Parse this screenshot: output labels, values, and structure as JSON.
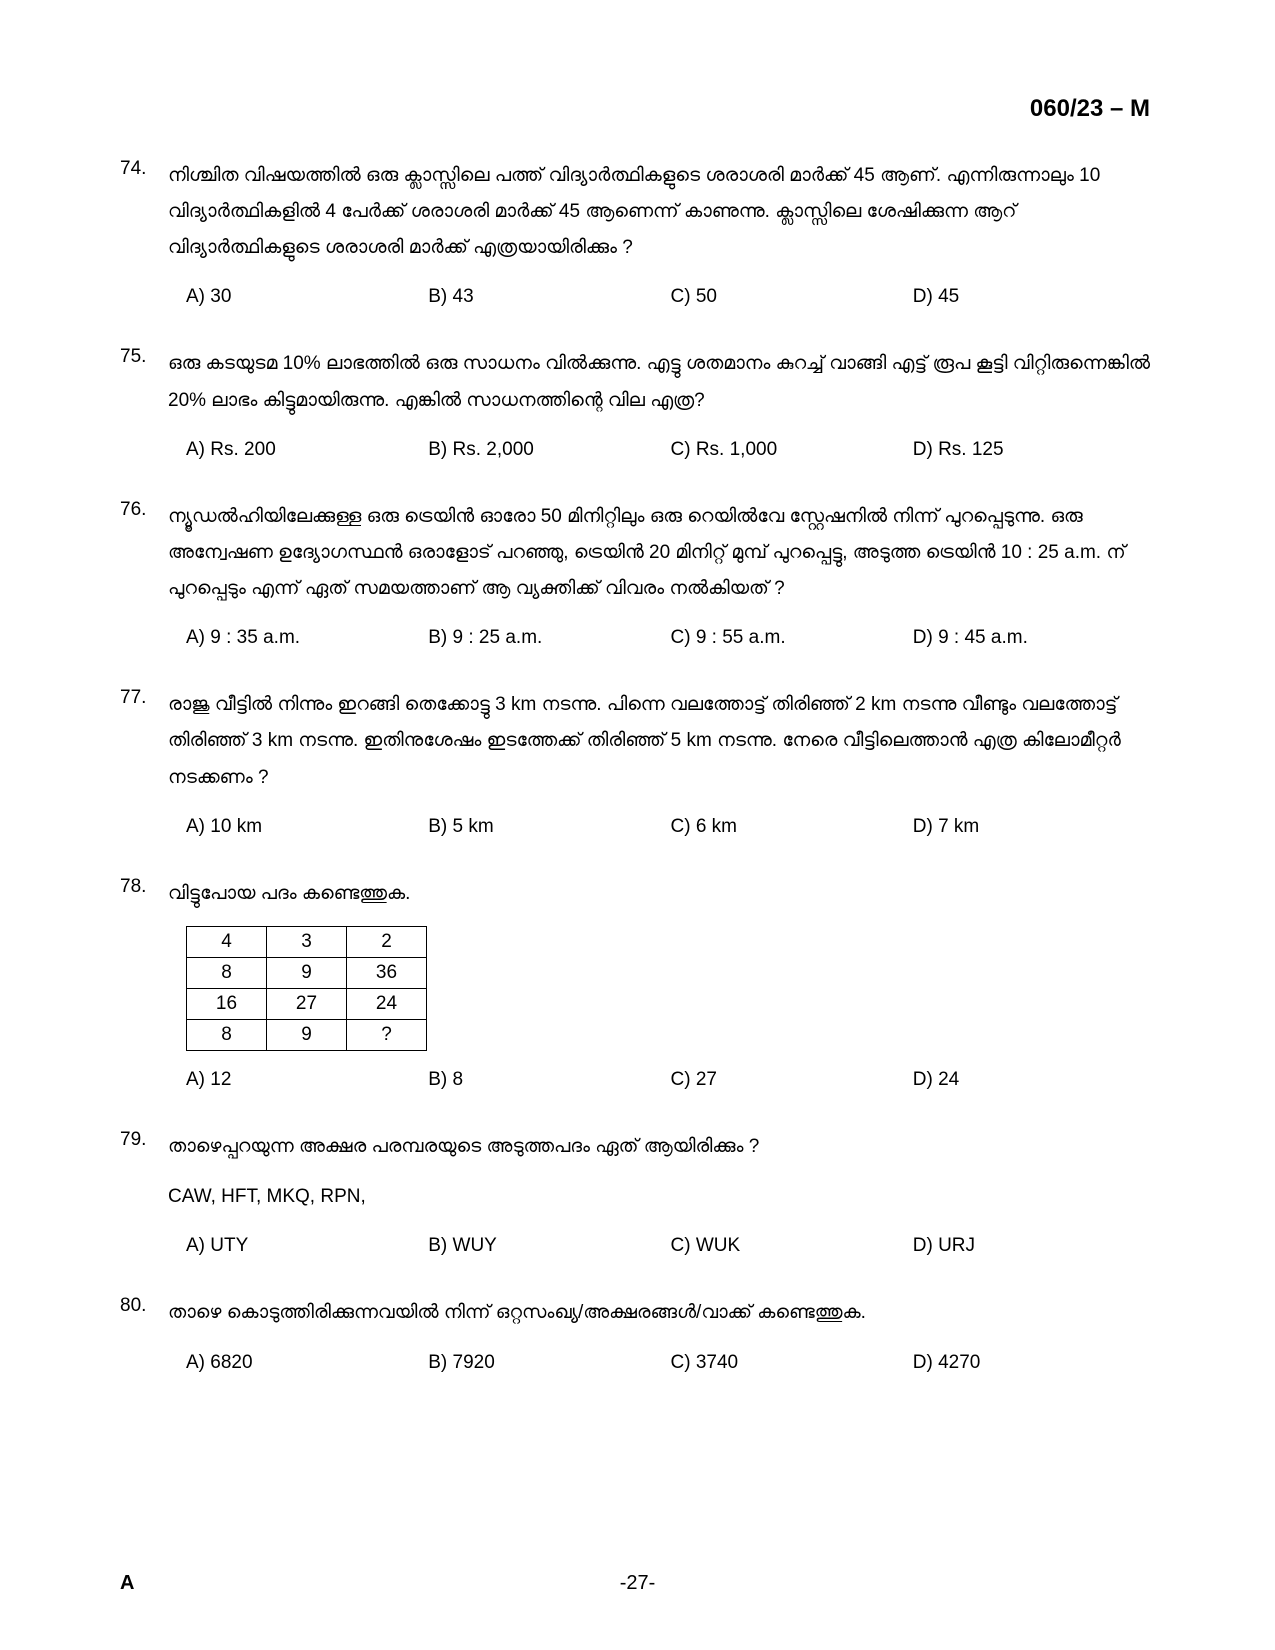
{
  "header": {
    "code": "060/23 – M"
  },
  "questions": [
    {
      "number": "74.",
      "text": "നിശ്ചിത വിഷയത്തിൽ ഒരു ക്ലാസ്സിലെ പത്ത് വിദ്യാർത്ഥികളുടെ ശരാശരി മാർക്ക് 45 ആണ്. എന്നിരുന്നാലും 10 വിദ്യാർത്ഥികളിൽ 4 പേർക്ക് ശരാശരി മാർക്ക് 45 ആണെന്ന് കാണുന്നു. ക്ലാസ്സിലെ ശേഷിക്കുന്ന ആറ് വിദ്യാർത്ഥികളുടെ ശരാശരി മാർക്ക് എത്രയായിരിക്കും ?",
      "options": {
        "a": "A)  30",
        "b": "B)  43",
        "c": "C)  50",
        "d": "D)  45"
      }
    },
    {
      "number": "75.",
      "text": "ഒരു കടയുടമ 10% ലാഭത്തിൽ ഒരു സാധനം വിൽക്കുന്നു. എട്ടു ശതമാനം കുറച്ച് വാങ്ങി എട്ട് രൂപ കൂട്ടി വിറ്റിരുന്നെങ്കിൽ 20% ലാഭം കിട്ടുമായിരുന്നു. എങ്കിൽ സാധനത്തിന്റെ വില എത്ര?",
      "options": {
        "a": "A)  Rs. 200",
        "b": "B)  Rs. 2,000",
        "c": "C)  Rs. 1,000",
        "d": "D)  Rs. 125"
      }
    },
    {
      "number": "76.",
      "text": "ന്യൂഡൽഹിയിലേക്കുള്ള ഒരു ട്രെയിൻ ഓരോ 50 മിനിറ്റിലും ഒരു റെയിൽവേ സ്റ്റേഷനിൽ നിന്ന് പുറപ്പെടുന്നു. ഒരു അന്വേഷണ ഉദ്യോഗസ്ഥൻ ഒരാളോട് പറഞ്ഞു, ട്രെയിൻ 20 മിനിറ്റ് മുമ്പ് പുറപ്പെട്ടു, അടുത്ത ട്രെയിൻ 10 : 25 a.m. ന് പുറപ്പെടും എന്ന് ഏത് സമയത്താണ് ആ വ്യക്തിക്ക് വിവരം നൽകിയത് ?",
      "options": {
        "a": "A)  9 : 35 a.m.",
        "b": "B)  9 : 25 a.m.",
        "c": "C)  9 : 55 a.m.",
        "d": "D)  9 : 45 a.m."
      }
    },
    {
      "number": "77.",
      "text": "രാജു വീട്ടിൽ നിന്നും ഇറങ്ങി തെക്കോട്ടു 3 km നടന്നു. പിന്നെ വലത്തോട്ട് തിരിഞ്ഞ് 2 km നടന്നു വീണ്ടും വലത്തോട്ട് തിരിഞ്ഞ് 3 km നടന്നു. ഇതിനുശേഷം ഇടത്തേക്ക് തിരിഞ്ഞ് 5 km നടന്നു. നേരെ വീട്ടിലെത്താൻ എത്ര കിലോമീറ്റർ നടക്കണം ?",
      "options": {
        "a": "A)  10 km",
        "b": "B)  5 km",
        "c": "C)  6 km",
        "d": "D)  7 km"
      }
    },
    {
      "number": "78.",
      "text": "വിട്ടുപോയ പദം കണ്ടെത്തുക.",
      "table": [
        [
          "4",
          "3",
          "2"
        ],
        [
          "8",
          "9",
          "36"
        ],
        [
          "16",
          "27",
          "24"
        ],
        [
          "8",
          "9",
          "?"
        ]
      ],
      "options": {
        "a": "A)  12",
        "b": "B)  8",
        "c": "C)  27",
        "d": "D)  24"
      }
    },
    {
      "number": "79.",
      "text": "താഴെപ്പറയുന്ന അക്ഷര പരമ്പരയുടെ അടുത്തപദം ഏത് ആയിരിക്കും ?",
      "sequence": "CAW, HFT, MKQ, RPN,",
      "options": {
        "a": "A)  UTY",
        "b": "B)  WUY",
        "c": "C)  WUK",
        "d": "D)  URJ"
      }
    },
    {
      "number": "80.",
      "text": "താഴെ കൊടുത്തിരിക്കുന്നവയിൽ നിന്ന് ഒറ്റസംഖ്യ/അക്ഷരങ്ങൾ/വാക്ക് കണ്ടെത്തുക.",
      "options": {
        "a": "A)  6820",
        "b": "B)  7920",
        "c": "C)  3740",
        "d": "D)  4270"
      }
    }
  ],
  "footer": {
    "left": "A",
    "center": "-27-"
  }
}
